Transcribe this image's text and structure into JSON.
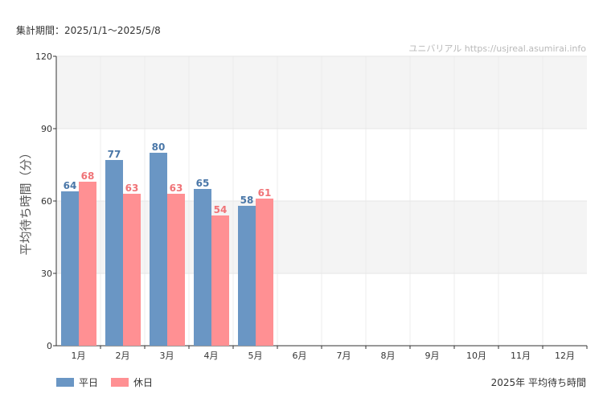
{
  "header": {
    "period": "集計期間：2025/1/1～2025/5/8",
    "credit": "ユニバリアル  https://usjreal.asumirai.info"
  },
  "footer": {
    "title": "2025年 平均待ち時間"
  },
  "legend": [
    {
      "label": "平日",
      "color": "#6a96c4"
    },
    {
      "label": "休日",
      "color": "#ff9093"
    }
  ],
  "chart_data": {
    "type": "bar",
    "categories": [
      "1月",
      "2月",
      "3月",
      "4月",
      "5月",
      "6月",
      "7月",
      "8月",
      "9月",
      "10月",
      "11月",
      "12月"
    ],
    "series": [
      {
        "name": "平日",
        "values": [
          64,
          77,
          80,
          65,
          58,
          null,
          null,
          null,
          null,
          null,
          null,
          null
        ],
        "color": "#6a96c4",
        "label_color": "#4a77a8"
      },
      {
        "name": "休日",
        "values": [
          68,
          63,
          63,
          54,
          61,
          null,
          null,
          null,
          null,
          null,
          null,
          null
        ],
        "color": "#ff9093",
        "label_color": "#f07377"
      }
    ],
    "ylabel": "平均待ち時間（分）",
    "ylim": [
      0,
      120
    ],
    "yticks": [
      0,
      30,
      60,
      90,
      120
    ]
  }
}
